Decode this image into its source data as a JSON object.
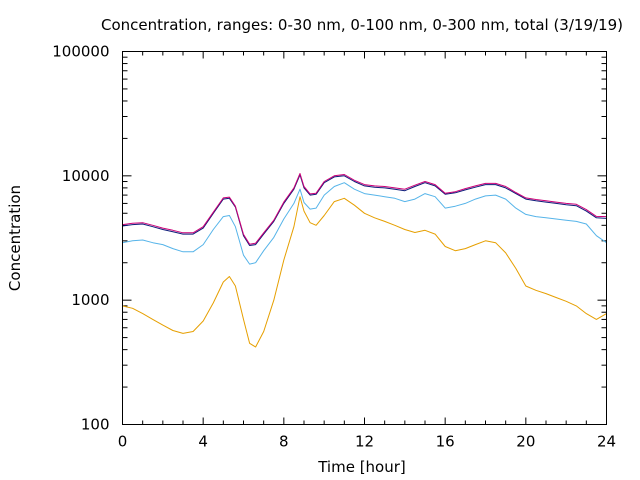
{
  "chart_data": {
    "type": "line",
    "title": "Concentration, ranges: 0-30 nm, 0-100 nm, 0-300 nm, total (3/19/19)",
    "xlabel": "Time [hour]",
    "ylabel": "Concentration",
    "xlim": [
      0,
      24
    ],
    "ylim": [
      100,
      100000
    ],
    "yscale": "log",
    "grid": false,
    "legend": "none",
    "x_ticks": [
      0,
      4,
      8,
      12,
      16,
      20,
      24
    ],
    "x_tick_labels": [
      "0",
      "4",
      "8",
      "12",
      "16",
      "20",
      "24"
    ],
    "y_ticks": [
      100,
      1000,
      10000,
      100000
    ],
    "y_tick_labels": [
      "100",
      "1000",
      "10000",
      "100000"
    ],
    "series": [
      {
        "color": "#e69f00",
        "x": [
          0,
          0.5,
          1,
          1.5,
          2,
          2.5,
          3,
          3.5,
          4,
          4.5,
          5,
          5.3,
          5.6,
          6,
          6.3,
          6.6,
          7,
          7.5,
          8,
          8.5,
          8.8,
          9,
          9.3,
          9.6,
          10,
          10.5,
          11,
          11.5,
          12,
          12.5,
          13,
          13.5,
          14,
          14.5,
          15,
          15.5,
          16,
          16.5,
          17,
          17.5,
          18,
          18.5,
          19,
          19.5,
          20,
          20.5,
          21,
          21.5,
          22,
          22.5,
          23,
          23.5,
          24
        ],
        "y": [
          900,
          860,
          780,
          700,
          630,
          570,
          540,
          560,
          680,
          950,
          1400,
          1550,
          1300,
          700,
          450,
          420,
          560,
          1000,
          2100,
          3900,
          6800,
          5200,
          4200,
          4000,
          4800,
          6200,
          6600,
          5800,
          5000,
          4600,
          4300,
          4000,
          3700,
          3500,
          3650,
          3400,
          2700,
          2500,
          2600,
          2800,
          3000,
          2900,
          2400,
          1800,
          1300,
          1200,
          1130,
          1050,
          980,
          900,
          780,
          700,
          780
        ]
      },
      {
        "color": "#56b4e9",
        "x": [
          0,
          0.5,
          1,
          1.5,
          2,
          2.5,
          3,
          3.5,
          4,
          4.5,
          5,
          5.3,
          5.6,
          6,
          6.3,
          6.6,
          7,
          7.5,
          8,
          8.5,
          8.8,
          9,
          9.3,
          9.6,
          10,
          10.5,
          11,
          11.5,
          12,
          12.5,
          13,
          13.5,
          14,
          14.5,
          15,
          15.5,
          16,
          16.5,
          17,
          17.5,
          18,
          18.5,
          19,
          19.5,
          20,
          20.5,
          21,
          21.5,
          22,
          22.5,
          23,
          23.5,
          24
        ],
        "y": [
          2900,
          3000,
          3050,
          2900,
          2800,
          2600,
          2450,
          2450,
          2800,
          3700,
          4700,
          4800,
          3900,
          2300,
          1950,
          2000,
          2500,
          3200,
          4500,
          6000,
          7800,
          6100,
          5400,
          5500,
          7000,
          8200,
          8800,
          7800,
          7200,
          7000,
          6800,
          6600,
          6200,
          6500,
          7200,
          6800,
          5500,
          5700,
          6000,
          6500,
          6900,
          7000,
          6500,
          5500,
          4900,
          4700,
          4600,
          4500,
          4400,
          4300,
          4100,
          3300,
          2900
        ]
      },
      {
        "color": "#0d1b7a",
        "x": [
          0,
          0.5,
          1,
          1.5,
          2,
          2.5,
          3,
          3.5,
          4,
          4.5,
          5,
          5.3,
          5.6,
          6,
          6.3,
          6.6,
          7,
          7.5,
          8,
          8.5,
          8.8,
          9,
          9.3,
          9.6,
          10,
          10.5,
          11,
          11.5,
          12,
          12.5,
          13,
          13.5,
          14,
          14.5,
          15,
          15.5,
          16,
          16.5,
          17,
          17.5,
          18,
          18.5,
          19,
          19.5,
          20,
          20.5,
          21,
          21.5,
          22,
          22.5,
          23,
          23.5,
          24
        ],
        "y": [
          3950,
          4050,
          4100,
          3900,
          3700,
          3550,
          3400,
          3400,
          3800,
          5000,
          6500,
          6600,
          5600,
          3300,
          2750,
          2800,
          3400,
          4300,
          6000,
          7800,
          10200,
          8000,
          7000,
          7100,
          8800,
          9800,
          10000,
          9000,
          8300,
          8100,
          8000,
          7800,
          7600,
          8200,
          8800,
          8300,
          7100,
          7300,
          7700,
          8100,
          8500,
          8500,
          8000,
          7200,
          6500,
          6300,
          6150,
          6000,
          5850,
          5750,
          5200,
          4600,
          4550
        ]
      },
      {
        "color": "#cc0077",
        "x": [
          0,
          0.5,
          1,
          1.5,
          2,
          2.5,
          3,
          3.5,
          4,
          4.5,
          5,
          5.3,
          5.6,
          6,
          6.3,
          6.6,
          7,
          7.5,
          8,
          8.5,
          8.8,
          9,
          9.3,
          9.6,
          10,
          10.5,
          11,
          11.5,
          12,
          12.5,
          13,
          13.5,
          14,
          14.5,
          15,
          15.5,
          16,
          16.5,
          17,
          17.5,
          18,
          18.5,
          19,
          19.5,
          20,
          20.5,
          21,
          21.5,
          22,
          22.5,
          23,
          23.5,
          24
        ],
        "y": [
          4050,
          4150,
          4200,
          4000,
          3800,
          3650,
          3480,
          3480,
          3900,
          5100,
          6650,
          6750,
          5700,
          3380,
          2820,
          2870,
          3480,
          4400,
          6150,
          8000,
          10450,
          8200,
          7150,
          7250,
          9000,
          10000,
          10250,
          9200,
          8500,
          8300,
          8200,
          8000,
          7800,
          8400,
          9000,
          8500,
          7250,
          7450,
          7900,
          8300,
          8700,
          8700,
          8200,
          7350,
          6650,
          6450,
          6300,
          6150,
          6000,
          5900,
          5350,
          4720,
          4700
        ]
      }
    ]
  }
}
